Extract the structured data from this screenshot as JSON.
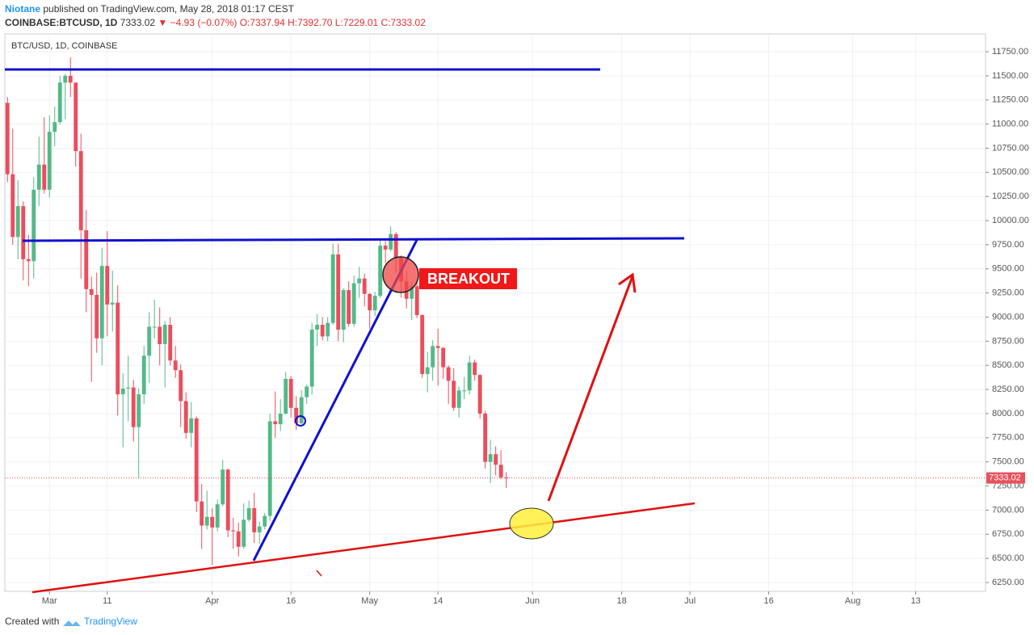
{
  "header": {
    "author": "Niotane",
    "published": "published on TradingView.com, May 28, 2018 01:17 CEST",
    "symbol": "COINBASE:BTCUSD, 1D",
    "price": "7333.02",
    "change": "▼ −4.93 (−0.07%)",
    "ohlc": "O:7337.94 H:7392.70 L:7229.01 C:7333.02"
  },
  "footer": {
    "created": "Created with",
    "brand": "TradingView"
  },
  "chart_data": {
    "type": "candlestick",
    "title": "BTC/USD, 1D, COINBASE",
    "annotation": "BREAKOUT",
    "grid": true,
    "up_color": "#53b987",
    "down_color": "#eb4d5c",
    "last_price_color": "#e8515c",
    "x": [
      -8,
      -7,
      -6,
      -5,
      -4,
      -3,
      -2,
      -1,
      0,
      1,
      2,
      3,
      4,
      5,
      6,
      7,
      8,
      9,
      10,
      11,
      12,
      13,
      14,
      15,
      16,
      17,
      18,
      19,
      20,
      21,
      22,
      23,
      24,
      25,
      26,
      27,
      28,
      29,
      30,
      31,
      32,
      33,
      34,
      35,
      36,
      37,
      38,
      39,
      40,
      41,
      42,
      43,
      44,
      45,
      46,
      47,
      48,
      49,
      50,
      51,
      52,
      53,
      54,
      55,
      56,
      57,
      58,
      59,
      60,
      61,
      62,
      63,
      64,
      65,
      66,
      67,
      68,
      69,
      70,
      71,
      72,
      73,
      74,
      75,
      76,
      77,
      78,
      79,
      80,
      81,
      82,
      83,
      84,
      85,
      86,
      87
    ],
    "open": [
      11220,
      10480,
      9830,
      10150,
      9600,
      9580,
      10320,
      10580,
      10320,
      10920,
      11020,
      11430,
      11500,
      11430,
      10720,
      9900,
      9290,
      9230,
      8780,
      9530,
      9130,
      9150,
      8200,
      8260,
      8270,
      7860,
      8200,
      8600,
      8900,
      8900,
      8720,
      8920,
      8550,
      8450,
      8130,
      7800,
      7950,
      7090,
      6840,
      6930,
      6820,
      7060,
      7420,
      6790,
      6780,
      6620,
      6900,
      7020,
      6770,
      6830,
      6940,
      7920,
      7890,
      8000,
      8360,
      8060,
      7900,
      8170,
      8280,
      8870,
      8920,
      8800,
      8940,
      9650,
      8870,
      9280,
      8930,
      9350,
      9400,
      9240,
      9070,
      9220,
      9740,
      9700,
      9860,
      9620,
      9370,
      9190,
      9320,
      9020,
      8410,
      8480,
      8700,
      8680,
      8480,
      8340,
      8060,
      8240,
      8240,
      8530,
      8400,
      8000,
      7500,
      7580,
      7470,
      7337.94
    ],
    "high": [
      11280,
      10950,
      10420,
      10200,
      9850,
      10450,
      10870,
      11070,
      11090,
      11180,
      11500,
      11520,
      11690,
      11430,
      10900,
      10110,
      9420,
      9460,
      9720,
      9890,
      9480,
      9330,
      8420,
      8600,
      8350,
      8260,
      8700,
      9050,
      9180,
      9100,
      8960,
      9000,
      8700,
      8510,
      8220,
      8120,
      7970,
      7270,
      7200,
      7020,
      7110,
      7520,
      7430,
      6920,
      6870,
      7070,
      7100,
      7180,
      6880,
      6970,
      8000,
      8230,
      8150,
      8430,
      8390,
      8180,
      8240,
      8300,
      8940,
      9030,
      9000,
      9000,
      9760,
      9760,
      9300,
      9370,
      9430,
      9520,
      9450,
      9250,
      9260,
      9800,
      9790,
      9940,
      9880,
      9640,
      9480,
      9370,
      9380,
      9030,
      8640,
      8760,
      8880,
      8690,
      8500,
      8470,
      8280,
      8380,
      8600,
      8560,
      8410,
      8030,
      7730,
      7660,
      7620,
      7392.7
    ],
    "low": [
      10400,
      9750,
      9600,
      9380,
      9320,
      9400,
      10150,
      10280,
      10240,
      10770,
      11000,
      11050,
      11280,
      10560,
      9400,
      9050,
      8330,
      8630,
      8500,
      8800,
      8850,
      7980,
      7650,
      7920,
      7710,
      7330,
      8100,
      8320,
      8780,
      8500,
      8270,
      8500,
      8370,
      7860,
      7740,
      7650,
      6980,
      6600,
      6800,
      6430,
      6780,
      7040,
      6720,
      6600,
      6520,
      6600,
      6880,
      6660,
      6650,
      6800,
      6890,
      7750,
      7820,
      7990,
      7960,
      7830,
      7890,
      8100,
      8200,
      8700,
      8760,
      8750,
      8920,
      8750,
      8740,
      8900,
      8900,
      9200,
      9110,
      8880,
      9010,
      9200,
      9560,
      9680,
      9460,
      9200,
      9090,
      8970,
      8990,
      8370,
      8220,
      8340,
      8290,
      8360,
      8100,
      8030,
      7960,
      8150,
      8200,
      8340,
      7950,
      7430,
      7280,
      7360,
      7320,
      7229.01
    ],
    "close": [
      10480,
      9830,
      10150,
      9600,
      9580,
      10320,
      10580,
      10320,
      10920,
      11020,
      11430,
      11500,
      11430,
      10720,
      9900,
      9290,
      9230,
      8780,
      9530,
      9130,
      9150,
      8200,
      8260,
      8270,
      7860,
      8200,
      8600,
      8900,
      8900,
      8720,
      8920,
      8550,
      8450,
      8130,
      7800,
      7950,
      7090,
      6840,
      6930,
      6820,
      7060,
      7420,
      6790,
      6780,
      6620,
      6900,
      7020,
      6770,
      6830,
      6940,
      7920,
      7890,
      8000,
      8360,
      8060,
      7900,
      8170,
      8280,
      8870,
      8920,
      8800,
      8940,
      9650,
      8870,
      9280,
      8930,
      9350,
      9400,
      9240,
      9070,
      9220,
      9740,
      9700,
      9860,
      9620,
      9370,
      9190,
      9320,
      9020,
      8410,
      8480,
      8700,
      8680,
      8480,
      8340,
      8060,
      8240,
      8240,
      8530,
      8400,
      8000,
      7500,
      7580,
      7470,
      7340,
      7333.02
    ],
    "xlim": [
      -8.5,
      178.3
    ],
    "xticks": [
      {
        "value": 0,
        "label": "Mar"
      },
      11,
      {
        "value": 31,
        "label": "Apr"
      },
      {
        "value": 46,
        "label": "16"
      },
      {
        "value": 61,
        "label": "May"
      },
      {
        "value": 74,
        "label": "14"
      },
      {
        "value": 92,
        "label": "Jun"
      },
      {
        "value": 109,
        "label": "18"
      },
      {
        "value": 122,
        "label": "Jul"
      },
      {
        "value": 137,
        "label": "16"
      },
      {
        "value": 153,
        "label": "Aug"
      },
      {
        "value": 165,
        "label": "13"
      }
    ],
    "ylim": [
      6158,
      11934
    ],
    "yticks": [
      {
        "value": 6250,
        "label": "6250.00"
      },
      {
        "value": 6500,
        "label": "6500.00"
      },
      {
        "value": 6750,
        "label": "6750.00"
      },
      {
        "value": 7000,
        "label": "7000.00"
      },
      {
        "value": 7250,
        "label": "7250.00"
      },
      {
        "value": 7500,
        "label": "7500.00"
      },
      {
        "value": 7750,
        "label": "7750.00"
      },
      {
        "value": 8000,
        "label": "8000.00"
      },
      {
        "value": 8250,
        "label": "8250.00"
      },
      {
        "value": 8500,
        "label": "8500.00"
      },
      {
        "value": 8750,
        "label": "8750.00"
      },
      {
        "value": 9000,
        "label": "9000.00"
      },
      {
        "value": 9250,
        "label": "9250.00"
      },
      {
        "value": 9500,
        "label": "9500.00"
      },
      {
        "value": 9750,
        "label": "9750.00"
      },
      {
        "value": 10000,
        "label": "10000.00"
      },
      {
        "value": 10250,
        "label": "10250.00"
      },
      {
        "value": 10500,
        "label": "10500.00"
      },
      {
        "value": 10750,
        "label": "10750.00"
      },
      {
        "value": 11000,
        "label": "11000.00"
      },
      {
        "value": 11250,
        "label": "11250.00"
      },
      {
        "value": 11500,
        "label": "11500.00"
      },
      {
        "value": 11750,
        "label": "11750.00"
      }
    ]
  }
}
